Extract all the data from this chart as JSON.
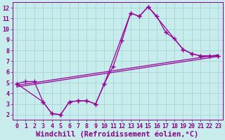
{
  "xlabel": "Windchill (Refroidissement éolien,°C)",
  "bg_color": "#c8ecec",
  "grid_color": "#a8d8d8",
  "line_color": "#990099",
  "xlim": [
    -0.5,
    23.5
  ],
  "ylim": [
    1.5,
    12.5
  ],
  "yticks": [
    2,
    3,
    4,
    5,
    6,
    7,
    8,
    9,
    10,
    11,
    12
  ],
  "xticks": [
    0,
    1,
    2,
    3,
    4,
    5,
    6,
    7,
    8,
    9,
    10,
    11,
    12,
    13,
    14,
    15,
    16,
    17,
    18,
    19,
    20,
    21,
    22,
    23
  ],
  "series1_x": [
    0,
    1,
    2,
    3,
    4,
    5,
    6,
    7,
    8,
    9,
    10,
    11,
    12,
    13,
    14,
    15,
    16,
    17,
    18,
    19,
    20,
    21,
    22,
    23
  ],
  "series1_y": [
    4.9,
    5.1,
    5.1,
    3.2,
    2.1,
    2.0,
    3.2,
    3.3,
    3.3,
    3.0,
    4.9,
    6.5,
    8.9,
    11.5,
    11.2,
    12.1,
    11.2,
    9.7,
    9.1,
    8.1,
    7.7,
    7.5,
    7.5,
    7.5
  ],
  "series2_x": [
    0,
    3,
    4,
    5,
    6,
    7,
    8,
    9,
    10,
    13,
    14,
    15,
    19,
    20,
    21,
    22,
    23
  ],
  "series2_y": [
    4.9,
    3.2,
    2.1,
    2.0,
    3.2,
    3.3,
    3.3,
    3.0,
    4.9,
    11.5,
    11.2,
    12.1,
    8.1,
    7.7,
    7.5,
    7.5,
    7.5
  ],
  "trend1_x": [
    0,
    23
  ],
  "trend1_y": [
    4.75,
    7.6
  ],
  "trend2_x": [
    0,
    23
  ],
  "trend2_y": [
    4.6,
    7.45
  ],
  "font_color": "#880088",
  "tick_fontsize": 6,
  "label_fontsize": 7.5
}
